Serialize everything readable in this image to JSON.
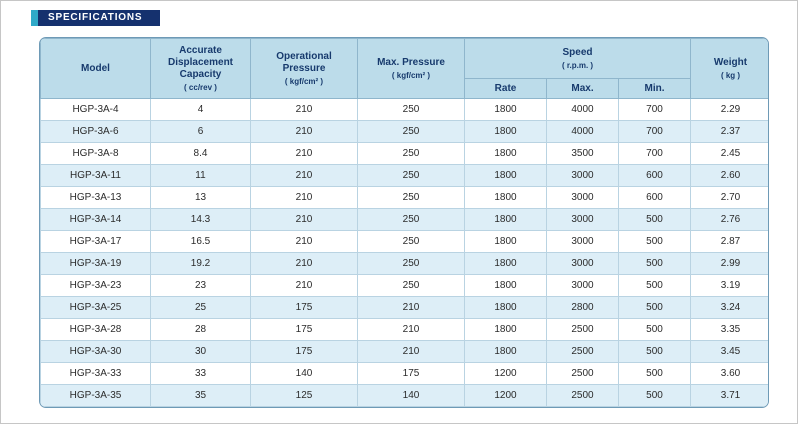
{
  "page": {
    "title_bar": "SPECIFICATIONS"
  },
  "colors": {
    "title_bar_bg": "#15316e",
    "title_accent": "#2fa9c8",
    "header_bg": "#bcdcea",
    "alt_row_bg": "#ddeef7",
    "table_border": "#8fb6cc",
    "outer_border": "#6e9ab6",
    "header_text": "#173a6d",
    "body_text": "#2b2b2b"
  },
  "table": {
    "column_keys": [
      "model",
      "displacement_capacity",
      "operational_pressure",
      "max_pressure",
      "speed_rate",
      "speed_max",
      "speed_min",
      "weight"
    ],
    "headers": {
      "model": {
        "label": "Model"
      },
      "displacement_capacity": {
        "label": "Accurate Displacement Capacity",
        "unit": "( cc/rev )"
      },
      "operational_pressure": {
        "label": "Operational Pressure",
        "unit": "( kgf/cm² )"
      },
      "max_pressure": {
        "label": "Max. Pressure",
        "unit": "( kgf/cm² )"
      },
      "speed": {
        "label": "Speed",
        "unit": "( r.p.m. )",
        "sub": {
          "rate": "Rate",
          "max": "Max.",
          "min": "Min."
        }
      },
      "weight": {
        "label": "Weight",
        "unit": "( kg )"
      }
    },
    "rows": [
      [
        "HGP-3A-4",
        "4",
        "210",
        "250",
        "1800",
        "4000",
        "700",
        "2.29"
      ],
      [
        "HGP-3A-6",
        "6",
        "210",
        "250",
        "1800",
        "4000",
        "700",
        "2.37"
      ],
      [
        "HGP-3A-8",
        "8.4",
        "210",
        "250",
        "1800",
        "3500",
        "700",
        "2.45"
      ],
      [
        "HGP-3A-11",
        "11",
        "210",
        "250",
        "1800",
        "3000",
        "600",
        "2.60"
      ],
      [
        "HGP-3A-13",
        "13",
        "210",
        "250",
        "1800",
        "3000",
        "600",
        "2.70"
      ],
      [
        "HGP-3A-14",
        "14.3",
        "210",
        "250",
        "1800",
        "3000",
        "500",
        "2.76"
      ],
      [
        "HGP-3A-17",
        "16.5",
        "210",
        "250",
        "1800",
        "3000",
        "500",
        "2.87"
      ],
      [
        "HGP-3A-19",
        "19.2",
        "210",
        "250",
        "1800",
        "3000",
        "500",
        "2.99"
      ],
      [
        "HGP-3A-23",
        "23",
        "210",
        "250",
        "1800",
        "3000",
        "500",
        "3.19"
      ],
      [
        "HGP-3A-25",
        "25",
        "175",
        "210",
        "1800",
        "2800",
        "500",
        "3.24"
      ],
      [
        "HGP-3A-28",
        "28",
        "175",
        "210",
        "1800",
        "2500",
        "500",
        "3.35"
      ],
      [
        "HGP-3A-30",
        "30",
        "175",
        "210",
        "1800",
        "2500",
        "500",
        "3.45"
      ],
      [
        "HGP-3A-33",
        "33",
        "140",
        "175",
        "1200",
        "2500",
        "500",
        "3.60"
      ],
      [
        "HGP-3A-35",
        "35",
        "125",
        "140",
        "1200",
        "2500",
        "500",
        "3.71"
      ]
    ]
  }
}
